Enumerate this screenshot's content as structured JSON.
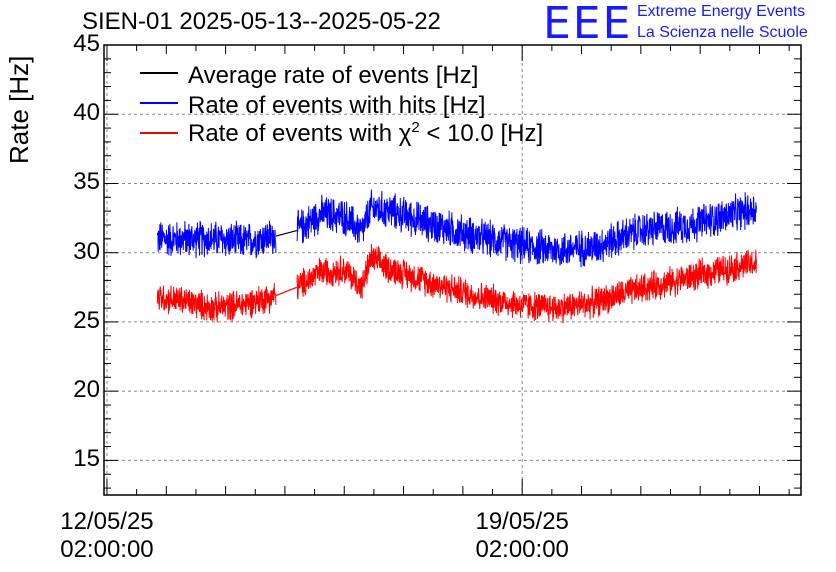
{
  "header": {
    "title": "SIEN-01 2025-05-13--2025-05-22",
    "logo_text": "EEE",
    "logo_line1": "Extreme Energy Events",
    "logo_line2": "La Scienza nelle Scuole"
  },
  "chart_data": {
    "type": "line",
    "ylabel": "Rate [Hz]",
    "ylim": [
      12.5,
      45
    ],
    "yticks": [
      "15",
      "20",
      "25",
      "30",
      "35",
      "40",
      "45"
    ],
    "xticks": [
      {
        "date": "12/05/25",
        "time": "02:00:00",
        "day": 0
      },
      {
        "date": "19/05/25",
        "time": "02:00:00",
        "day": 7
      }
    ],
    "xlim_days": [
      -0.05,
      11.7
    ],
    "grid": true,
    "legend_position": "top-left",
    "legend": [
      {
        "label_pre": "Average rate of events [Hz]",
        "sup": "",
        "label_post": "",
        "color": "#000000"
      },
      {
        "label_pre": "Rate of events with hits [Hz]",
        "sup": "",
        "label_post": "",
        "color": "#0000ff"
      },
      {
        "label_pre": "Rate of events with χ",
        "sup": "2",
        "label_post": " < 10.0 [Hz]",
        "color": "#ff0000"
      }
    ],
    "gap_days": [
      2.85,
      3.2
    ],
    "series": [
      {
        "name": "Rate of events with hits [Hz]",
        "color": "#0000ff",
        "noise": 1.1,
        "x_days": [
          0.85,
          1.3,
          1.8,
          2.3,
          2.85,
          3.2,
          3.6,
          4.0,
          4.3,
          4.45,
          4.8,
          5.5,
          6.2,
          7.0,
          7.6,
          8.2,
          9.0,
          9.8,
          10.6,
          10.95
        ],
        "values": [
          31.0,
          31.0,
          31.0,
          30.8,
          31.2,
          31.6,
          32.8,
          32.6,
          31.5,
          33.2,
          33.0,
          32.0,
          31.2,
          30.5,
          30.2,
          30.4,
          31.6,
          32.0,
          32.8,
          33.2
        ]
      },
      {
        "name": "Rate of events with χ2 < 10.0 [Hz]",
        "color": "#ff0000",
        "noise": 0.9,
        "x_days": [
          0.85,
          1.3,
          1.8,
          2.3,
          2.85,
          3.2,
          3.6,
          4.0,
          4.3,
          4.45,
          4.8,
          5.5,
          6.2,
          7.0,
          7.6,
          8.2,
          9.0,
          9.8,
          10.6,
          10.95
        ],
        "values": [
          26.8,
          26.5,
          26.0,
          26.3,
          26.9,
          27.5,
          28.6,
          28.8,
          27.5,
          29.6,
          28.8,
          27.8,
          26.9,
          26.2,
          26.0,
          26.4,
          27.4,
          28.2,
          29.0,
          29.2
        ]
      }
    ]
  }
}
